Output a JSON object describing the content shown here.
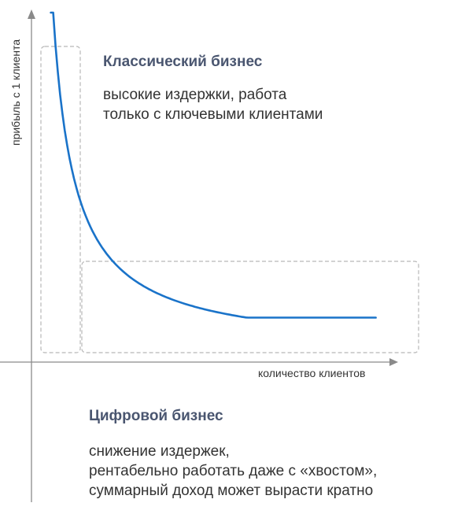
{
  "chart_data": {
    "type": "line",
    "title": "",
    "xlabel": "количество клиентов",
    "ylabel": "прибыль с 1 клиента",
    "x": [
      1,
      1.5,
      2,
      3,
      4,
      5,
      6,
      8,
      10,
      12,
      14,
      16
    ],
    "series": [
      {
        "values": [
          100,
          67,
          50,
          34,
          26,
          21,
          18,
          14,
          12,
          11,
          10,
          10
        ],
        "color": "#1a73c9"
      }
    ],
    "xlim": [
      0,
      17
    ],
    "ylim": [
      0,
      100
    ],
    "grid": false,
    "axis_ticks": false
  },
  "classic": {
    "title": "Классический бизнес",
    "lines": [
      "высокие издержки, работа",
      "только с ключевыми клиентами"
    ]
  },
  "digital": {
    "title": "Цифровой бизнес",
    "lines": [
      "снижение издержек,",
      "рентабельно работать даже с «хвостом»,",
      "суммарный доход может вырасти кратно"
    ]
  },
  "colors": {
    "curve": "#1a73c9",
    "axis": "#8a8a8a",
    "box": "#b8b8b8",
    "title": "#4a5670",
    "text": "#333333"
  }
}
